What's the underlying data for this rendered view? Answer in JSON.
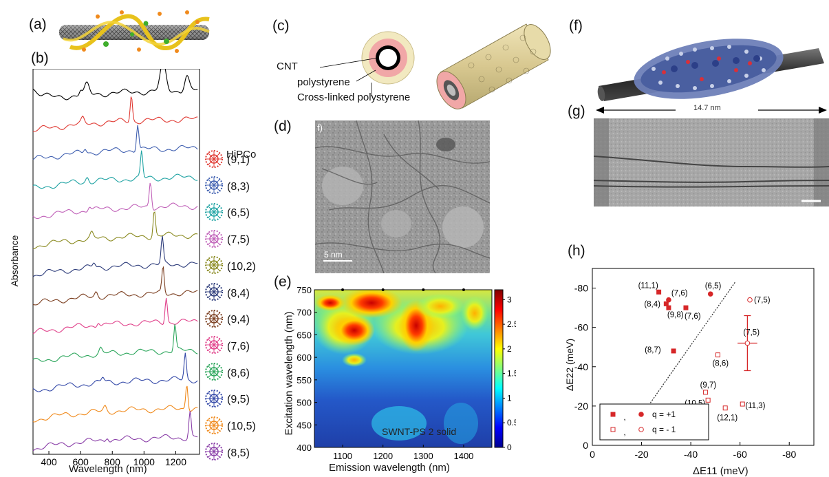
{
  "panels": {
    "a": "(a)",
    "b": "(b)",
    "c": "(c)",
    "d": "(d)",
    "e": "(e)",
    "f": "(f)",
    "g": "(g)",
    "h": "(h)"
  },
  "panel_b": {
    "ylabel": "Absorbance",
    "xlabel": "Wavelength (nm)",
    "xticks": [
      "400",
      "600",
      "800",
      "1000",
      "1200"
    ],
    "legend_title": "HiPCo",
    "chiralities": [
      "(9,1)",
      "(8,3)",
      "(6,5)",
      "(7,5)",
      "(10,2)",
      "(8,4)",
      "(9,4)",
      "(7,6)",
      "(8,6)",
      "(9,5)",
      "(10,5)",
      "(8,5)"
    ],
    "colors": [
      "#000000",
      "#e03a33",
      "#3f5fb0",
      "#1fa3a3",
      "#c060b8",
      "#8a8a20",
      "#2c3b7a",
      "#7a3d1e",
      "#e0408a",
      "#2aa55a",
      "#3449a8",
      "#f08a1c",
      "#8a3fa8"
    ],
    "peaks_nm": [
      null,
      920,
      960,
      985,
      1040,
      1065,
      1115,
      1120,
      1140,
      1195,
      1260,
      1270,
      1290
    ]
  },
  "panel_c": {
    "label_cnt": "CNT",
    "label_ps": "polystyrene",
    "label_xps": "Cross-linked polystyrene"
  },
  "panel_d": {
    "inset": "f)",
    "scalebar": "5 nm"
  },
  "panel_e": {
    "ylabel": "Excitation wavelength (nm)",
    "xlabel": "Emission wavelength (nm)",
    "yticks": [
      "750",
      "700",
      "650",
      "600",
      "550",
      "500",
      "450",
      "400"
    ],
    "xticks": [
      "1100",
      "1200",
      "1300",
      "1400"
    ],
    "cbar_ticks": [
      "3",
      "2.5",
      "2",
      "1.5",
      "1",
      "0.5",
      "0"
    ],
    "caption": "SWNT-PS 2 solid"
  },
  "panel_f": {
    "length": "14.7 nm"
  },
  "chart_data": {
    "type": "scatter",
    "title": "",
    "xlabel": "ΔE11 (meV)",
    "ylabel": "ΔE22 (meV)",
    "xlim": [
      0,
      -90
    ],
    "ylim": [
      0,
      -90
    ],
    "xticks": [
      "0",
      "-20",
      "-40",
      "-60",
      "-80"
    ],
    "yticks": [
      "-80",
      "-60",
      "-40",
      "-20",
      "0"
    ],
    "series": [
      {
        "name": "q = +1",
        "style": "filled",
        "points": [
          {
            "label": "(11,1)",
            "x": -27,
            "y": -78,
            "marker": "square"
          },
          {
            "label": "(7,6)",
            "x": -31,
            "y": -74,
            "marker": "circle"
          },
          {
            "label": "(8,4)",
            "x": -30,
            "y": -72,
            "marker": "square"
          },
          {
            "label": "(9,8)",
            "x": -31,
            "y": -70,
            "marker": "square"
          },
          {
            "label": "(7,6)",
            "x": -38,
            "y": -70,
            "marker": "square"
          },
          {
            "label": "(6,5)",
            "x": -48,
            "y": -77,
            "marker": "circle"
          },
          {
            "label": "(8,7)",
            "x": -33,
            "y": -48,
            "marker": "square"
          }
        ]
      },
      {
        "name": "q = - 1",
        "style": "open",
        "points": [
          {
            "label": "(7,5)",
            "x": -64,
            "y": -74,
            "marker": "circle"
          },
          {
            "label": "(7,5)",
            "x": -63,
            "y": -52,
            "marker": "circle",
            "xerr": 4,
            "yerr": 14
          },
          {
            "label": "(8,6)",
            "x": -51,
            "y": -46,
            "marker": "square"
          },
          {
            "label": "(9,7)",
            "x": -46,
            "y": -27,
            "marker": "square"
          },
          {
            "label": "(10,5)",
            "x": -47,
            "y": -23,
            "marker": "square"
          },
          {
            "label": "(12,1)",
            "x": -54,
            "y": -19,
            "marker": "square"
          },
          {
            "label": "(11,3)",
            "x": -61,
            "y": -21,
            "marker": "square"
          }
        ]
      }
    ],
    "legend": {
      "placement": "bottom-left",
      "sep": ",",
      "entries": [
        "q = +1",
        "q = - 1"
      ]
    },
    "colors": {
      "points": "#d62728",
      "diagonal": "#333333"
    }
  }
}
